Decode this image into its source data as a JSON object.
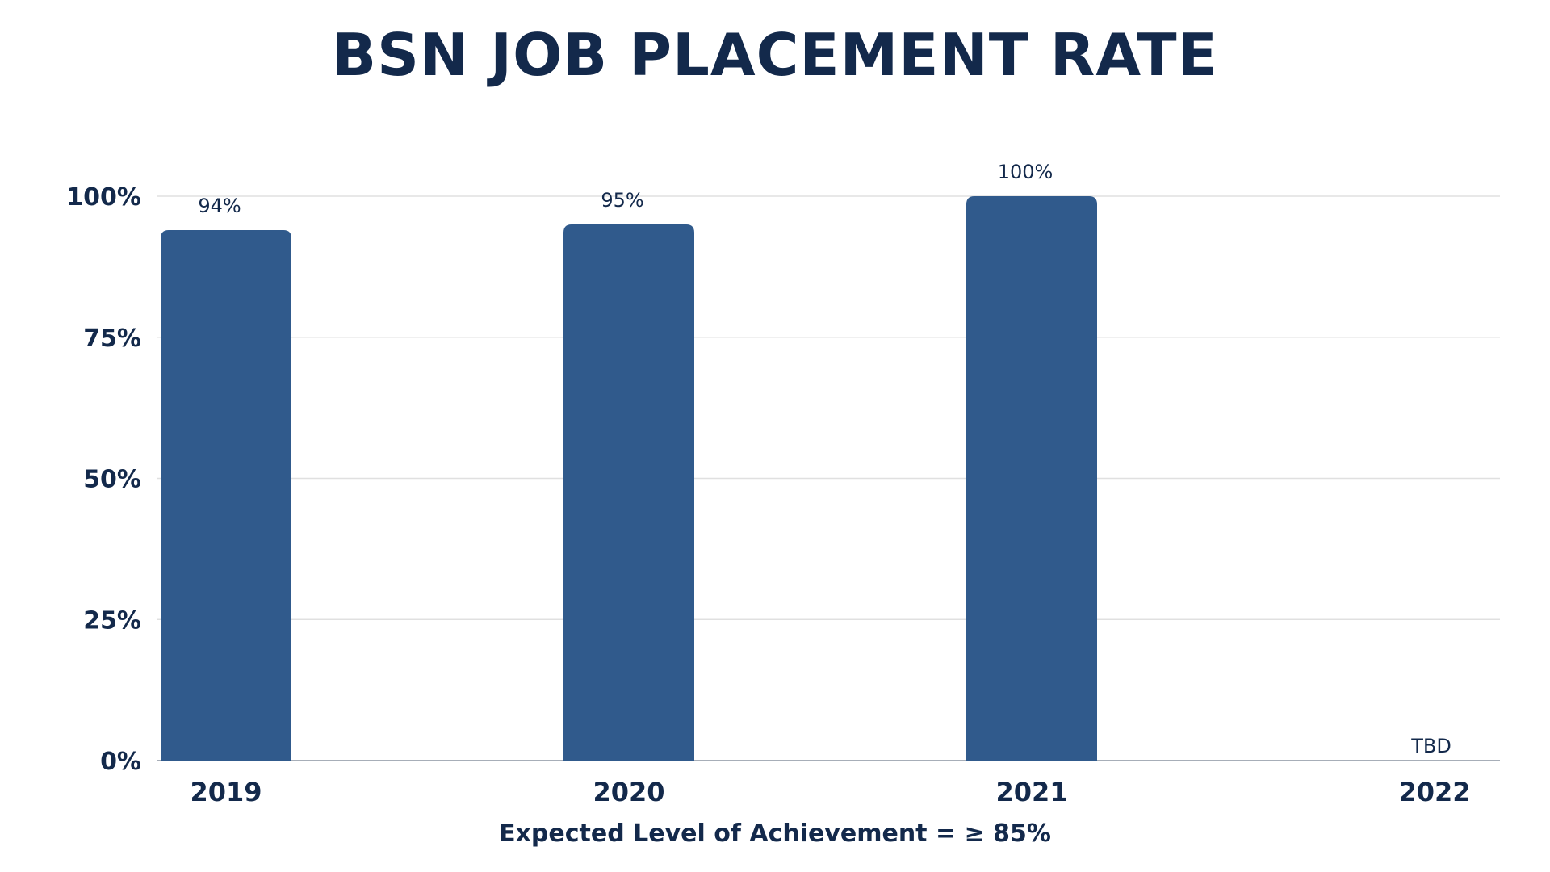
{
  "title": "BSN JOB PLACEMENT RATE",
  "footnote": "Expected Level of Achievement = ≥ 85%",
  "colors": {
    "bar": "#305a8c",
    "text": "#13294b",
    "grid": "#e0e0e0",
    "baseline": "#8a93a0"
  },
  "chart_data": {
    "type": "bar",
    "title": "BSN JOB PLACEMENT RATE",
    "xlabel": "",
    "ylabel": "",
    "categories": [
      "2019",
      "2020",
      "2021",
      "2022"
    ],
    "values": [
      94,
      95,
      100,
      null
    ],
    "data_labels": [
      "94%",
      "95%",
      "100%",
      "TBD"
    ],
    "ylim": [
      0,
      100
    ],
    "yticks": [
      0,
      25,
      50,
      75,
      100
    ],
    "ytick_labels": [
      "0%",
      "25%",
      "50%",
      "75%",
      "100%"
    ],
    "grid": true,
    "legend": "none"
  }
}
